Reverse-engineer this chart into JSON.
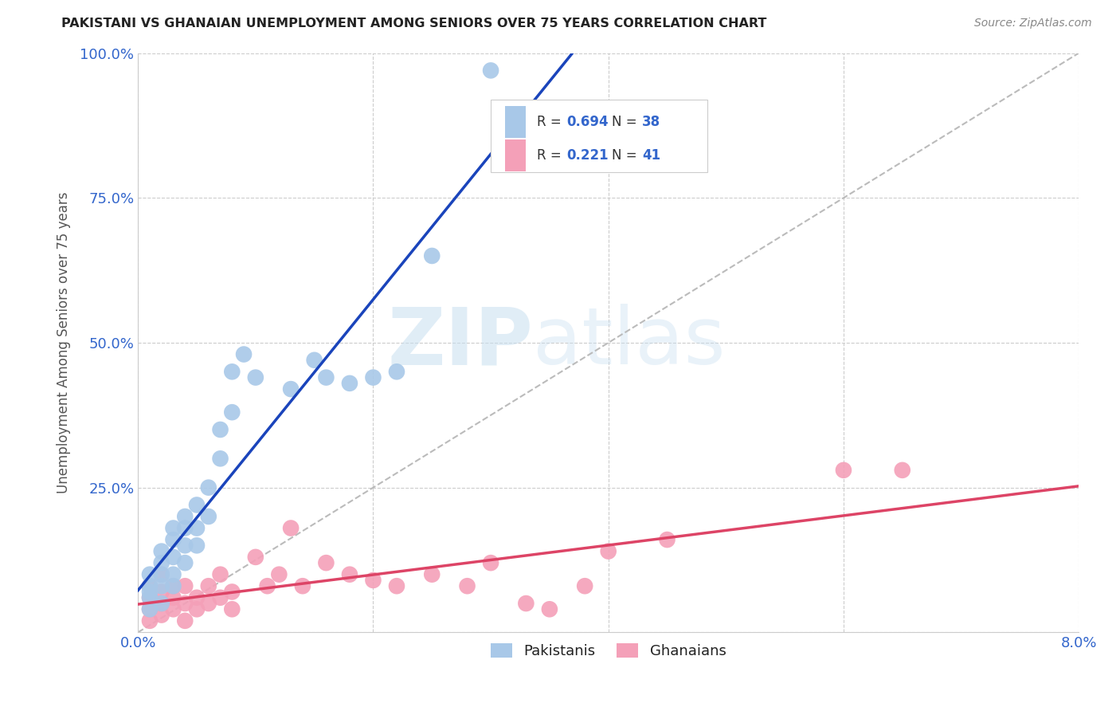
{
  "title": "PAKISTANI VS GHANAIAN UNEMPLOYMENT AMONG SENIORS OVER 75 YEARS CORRELATION CHART",
  "source": "Source: ZipAtlas.com",
  "ylabel": "Unemployment Among Seniors over 75 years",
  "x_min": 0.0,
  "x_max": 0.08,
  "y_min": 0.0,
  "y_max": 1.0,
  "y_ticks": [
    0.0,
    0.25,
    0.5,
    0.75,
    1.0
  ],
  "y_tick_labels": [
    "",
    "25.0%",
    "50.0%",
    "75.0%",
    "100.0%"
  ],
  "x_tick_labels": [
    "0.0%",
    "",
    "",
    "",
    "8.0%"
  ],
  "x_ticks": [
    0.0,
    0.02,
    0.04,
    0.06,
    0.08
  ],
  "pakistani_color": "#a8c8e8",
  "ghanaian_color": "#f4a0b8",
  "line1_color": "#1a44bb",
  "line2_color": "#dd4466",
  "diagonal_color": "#bbbbbb",
  "watermark_zip": "ZIP",
  "watermark_atlas": "atlas",
  "pakistani_x": [
    0.001,
    0.001,
    0.001,
    0.001,
    0.001,
    0.002,
    0.002,
    0.002,
    0.002,
    0.002,
    0.003,
    0.003,
    0.003,
    0.003,
    0.003,
    0.004,
    0.004,
    0.004,
    0.004,
    0.005,
    0.005,
    0.005,
    0.006,
    0.006,
    0.007,
    0.007,
    0.008,
    0.008,
    0.009,
    0.01,
    0.013,
    0.015,
    0.016,
    0.018,
    0.02,
    0.022,
    0.025,
    0.03
  ],
  "pakistani_y": [
    0.04,
    0.06,
    0.07,
    0.08,
    0.1,
    0.05,
    0.08,
    0.1,
    0.12,
    0.14,
    0.08,
    0.1,
    0.13,
    0.16,
    0.18,
    0.12,
    0.15,
    0.18,
    0.2,
    0.15,
    0.18,
    0.22,
    0.2,
    0.25,
    0.3,
    0.35,
    0.38,
    0.45,
    0.48,
    0.44,
    0.42,
    0.47,
    0.44,
    0.43,
    0.44,
    0.45,
    0.65,
    0.97
  ],
  "ghanaian_x": [
    0.001,
    0.001,
    0.001,
    0.001,
    0.002,
    0.002,
    0.002,
    0.002,
    0.003,
    0.003,
    0.003,
    0.004,
    0.004,
    0.004,
    0.005,
    0.005,
    0.006,
    0.006,
    0.007,
    0.007,
    0.008,
    0.008,
    0.01,
    0.011,
    0.012,
    0.013,
    0.014,
    0.016,
    0.018,
    0.02,
    0.022,
    0.025,
    0.028,
    0.03,
    0.033,
    0.035,
    0.038,
    0.04,
    0.045,
    0.06,
    0.065
  ],
  "ghanaian_y": [
    0.02,
    0.04,
    0.06,
    0.08,
    0.03,
    0.05,
    0.07,
    0.1,
    0.04,
    0.06,
    0.08,
    0.02,
    0.05,
    0.08,
    0.04,
    0.06,
    0.05,
    0.08,
    0.06,
    0.1,
    0.04,
    0.07,
    0.13,
    0.08,
    0.1,
    0.18,
    0.08,
    0.12,
    0.1,
    0.09,
    0.08,
    0.1,
    0.08,
    0.12,
    0.05,
    0.04,
    0.08,
    0.14,
    0.16,
    0.28,
    0.28
  ]
}
